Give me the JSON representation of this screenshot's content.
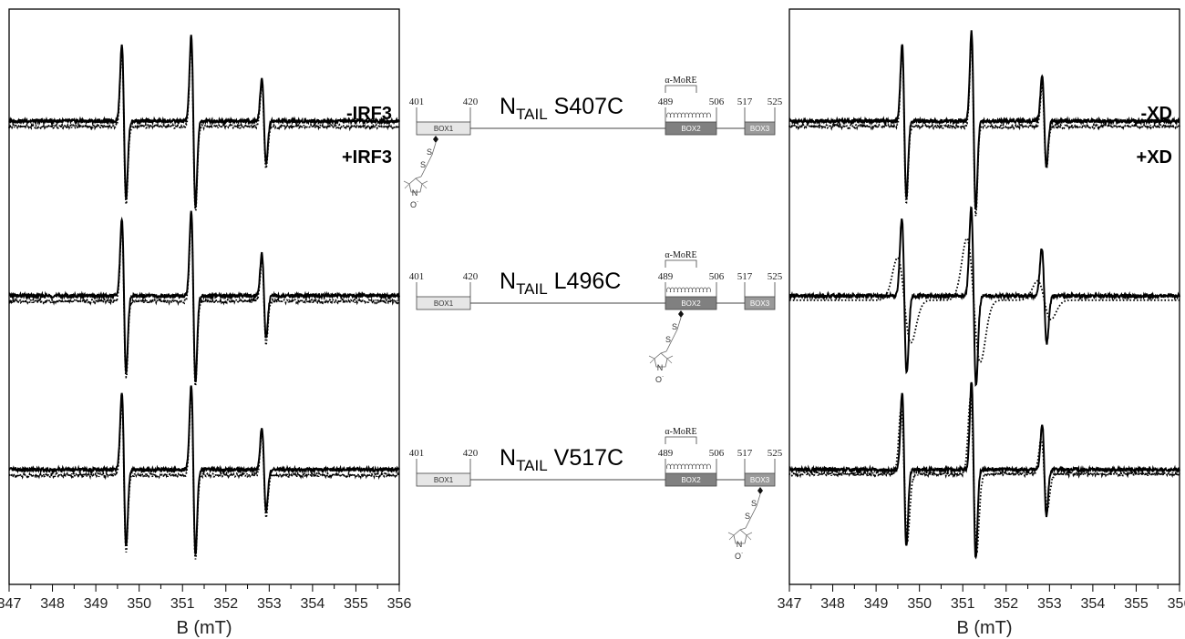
{
  "chart_data": [
    {
      "type": "line",
      "panel": "left",
      "xlabel": "B (mT)",
      "xlim": [
        347,
        356
      ],
      "xticks": [
        347,
        348,
        349,
        350,
        351,
        352,
        353,
        354,
        355,
        356
      ],
      "lines": {
        "solid": {
          "name": "-IRF3",
          "style": "solid"
        },
        "dotted": {
          "name": "+IRF3",
          "style": "dotted"
        }
      },
      "spectra": [
        {
          "construct": "S407C",
          "solid": {
            "offset": 0.0,
            "width": 0.07,
            "amps": [
              1.0,
              1.1,
              0.55
            ]
          },
          "dotted": {
            "offset": -0.1,
            "width": 0.07,
            "amps": [
              1.0,
              1.1,
              0.55
            ]
          }
        },
        {
          "construct": "L496C",
          "solid": {
            "offset": 0.0,
            "width": 0.07,
            "amps": [
              1.0,
              1.1,
              0.55
            ]
          },
          "dotted": {
            "offset": -0.1,
            "width": 0.07,
            "amps": [
              1.0,
              1.1,
              0.55
            ]
          }
        },
        {
          "construct": "V517C",
          "solid": {
            "offset": 0.0,
            "width": 0.07,
            "amps": [
              1.0,
              1.1,
              0.55
            ]
          },
          "dotted": {
            "offset": -0.1,
            "width": 0.07,
            "amps": [
              1.0,
              1.1,
              0.55
            ]
          }
        }
      ],
      "line_centers": [
        349.65,
        351.25,
        352.88
      ]
    },
    {
      "type": "line",
      "panel": "right",
      "xlabel": "B (mT)",
      "xlim": [
        347,
        356
      ],
      "xticks": [
        347,
        348,
        349,
        350,
        351,
        352,
        353,
        354,
        355,
        356
      ],
      "lines": {
        "solid": {
          "name": "-XD",
          "style": "solid"
        },
        "dotted": {
          "name": "+XD",
          "style": "dotted"
        }
      },
      "spectra": [
        {
          "construct": "S407C",
          "solid": {
            "offset": 0.0,
            "width": 0.07,
            "amps": [
              1.0,
              1.15,
              0.6
            ]
          },
          "dotted": {
            "offset": -0.1,
            "width": 0.07,
            "amps": [
              1.0,
              1.15,
              0.55
            ]
          }
        },
        {
          "construct": "L496C",
          "solid": {
            "offset": 0.0,
            "width": 0.08,
            "amps": [
              1.0,
              1.15,
              0.62
            ]
          },
          "dotted": {
            "offset": -0.08,
            "width": 0.22,
            "amps": [
              0.55,
              0.8,
              0.25
            ]
          }
        },
        {
          "construct": "V517C",
          "solid": {
            "offset": 0.0,
            "width": 0.07,
            "amps": [
              1.0,
              1.15,
              0.6
            ]
          },
          "dotted": {
            "offset": -0.08,
            "width": 0.1,
            "amps": [
              0.85,
              1.0,
              0.45
            ]
          }
        }
      ],
      "line_centers": [
        349.65,
        351.25,
        352.88
      ]
    }
  ],
  "constructs": [
    {
      "name_main": "N",
      "name_sub": "TAIL",
      "mutation": "S407C",
      "label_site": 407
    },
    {
      "name_main": "N",
      "name_sub": "TAIL",
      "mutation": "L496C",
      "label_site": 496
    },
    {
      "name_main": "N",
      "name_sub": "TAIL",
      "mutation": "V517C",
      "label_site": 517
    }
  ],
  "schematic": {
    "more_label": "α-MoRE",
    "residues": [
      "401",
      "420",
      "489",
      "506",
      "517",
      "525"
    ],
    "boxes": [
      "BOX1",
      "BOX2",
      "BOX3"
    ],
    "nitroxide_o": "O˙",
    "nitroxide_n": "N",
    "nitroxide_s": "S",
    "colors": {
      "box1": "#e6e6e6",
      "box2": "#808080",
      "box3": "#9a9a9a",
      "stroke": "#444444"
    }
  }
}
